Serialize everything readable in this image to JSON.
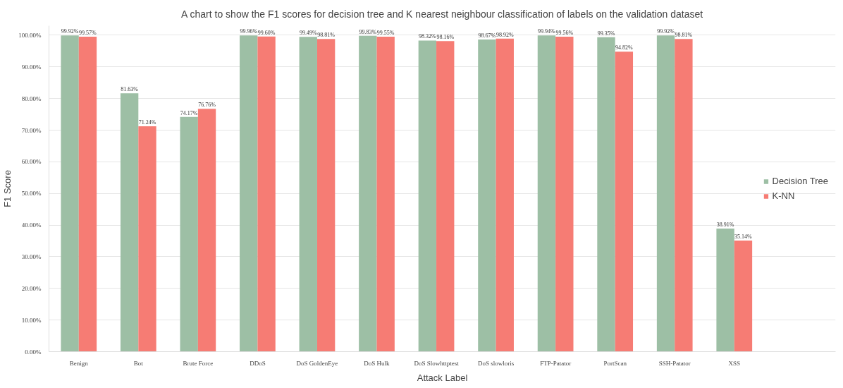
{
  "chart_data": {
    "type": "bar",
    "title": "A chart to show the F1 scores for decision tree and K nearest neighbour classification of labels on the validation dataset",
    "xlabel": "Attack Label",
    "ylabel": "F1 Score",
    "categories": [
      "Benign",
      "Bot",
      "Brute Force",
      "DDoS",
      "DoS GoldenEye",
      "DoS Hulk",
      "DoS Slowhttptest",
      "DoS slowloris",
      "FTP-Patator",
      "PortScan",
      "SSH-Patator",
      "XSS"
    ],
    "series": [
      {
        "name": "Decision Tree",
        "color": "#9dbfa5",
        "values": [
          99.92,
          81.63,
          74.17,
          99.96,
          99.49,
          99.83,
          98.32,
          98.67,
          99.94,
          99.35,
          99.92,
          38.91
        ],
        "value_labels": [
          "99.92%",
          "81.63%",
          "74.17%",
          "99.96%",
          "99.49%",
          "99.83%",
          "98.32%",
          "98.67%",
          "99.94%",
          "99.35%",
          "99.92%",
          "38.91%"
        ]
      },
      {
        "name": "K-NN",
        "color": "#f67c74",
        "values": [
          99.57,
          71.24,
          76.76,
          99.6,
          98.81,
          99.55,
          98.16,
          98.92,
          99.56,
          94.82,
          98.81,
          35.14
        ],
        "value_labels": [
          "99.57%",
          "71.24%",
          "76.76%",
          "99.60%",
          "98.81%",
          "99.55%",
          "98.16%",
          "98.92%",
          "99.56%",
          "94.82%",
          "98.81%",
          "35.14%"
        ]
      }
    ],
    "ylim": [
      0,
      103
    ],
    "yticks": [
      {
        "value": 0,
        "label": "0.00%"
      },
      {
        "value": 10,
        "label": "10.00%"
      },
      {
        "value": 20,
        "label": "20.00%"
      },
      {
        "value": 30,
        "label": "30.00%"
      },
      {
        "value": 40,
        "label": "40.00%"
      },
      {
        "value": 50,
        "label": "50.00%"
      },
      {
        "value": 60,
        "label": "60.00%"
      },
      {
        "value": 70,
        "label": "70.00%"
      },
      {
        "value": 80,
        "label": "80.00%"
      },
      {
        "value": 90,
        "label": "90.00%"
      },
      {
        "value": 100,
        "label": "100.00%"
      }
    ],
    "grid": "y",
    "legend": "right"
  }
}
